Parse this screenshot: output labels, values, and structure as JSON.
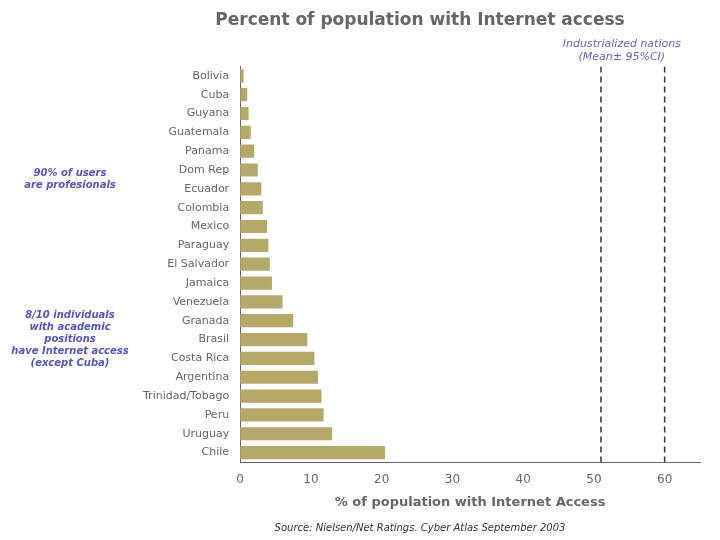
{
  "chart_data": {
    "type": "bar",
    "orientation": "horizontal",
    "title": "Percent of population with Internet access",
    "categories": [
      "Bolivia",
      "Cuba",
      "Guyana",
      "Guatemala",
      "Panama",
      "Dom Rep",
      "Ecuador",
      "Colombia",
      "Mexico",
      "Paraguay",
      "El Salvador",
      "Jamaica",
      "Venezuela",
      "Granada",
      "Brasil",
      "Costa Rica",
      "Argentina",
      "Trinidad/Tobago",
      "Peru",
      "Uruguay",
      "Chile"
    ],
    "values": [
      0.5,
      1.0,
      1.2,
      1.5,
      2.0,
      2.5,
      3.0,
      3.2,
      3.8,
      4.0,
      4.2,
      4.5,
      6.0,
      7.5,
      9.5,
      10.5,
      11.0,
      11.5,
      11.8,
      13.0,
      20.5
    ],
    "color": "#b5a96a",
    "xlim": [
      0,
      65
    ],
    "xticks": [
      0,
      10,
      20,
      30,
      40,
      50,
      60
    ],
    "xlabel": "% of population with Internet Access",
    "reference_lines": [
      51,
      60
    ],
    "annotations": [
      {
        "text": "Industrialized nations\n(Mean± 95%CI)",
        "color": "#6666bb"
      },
      {
        "text": "90% of users\nare profesionals",
        "color": "#5555bb"
      },
      {
        "text": "8/10 individuals\nwith academic\npositions\nhave Internet access\n(except Cuba)",
        "color": "#5555bb"
      }
    ],
    "source": "Source: Nielsen/Net Ratings. Cyber Atlas September 2003",
    "grid": false
  }
}
